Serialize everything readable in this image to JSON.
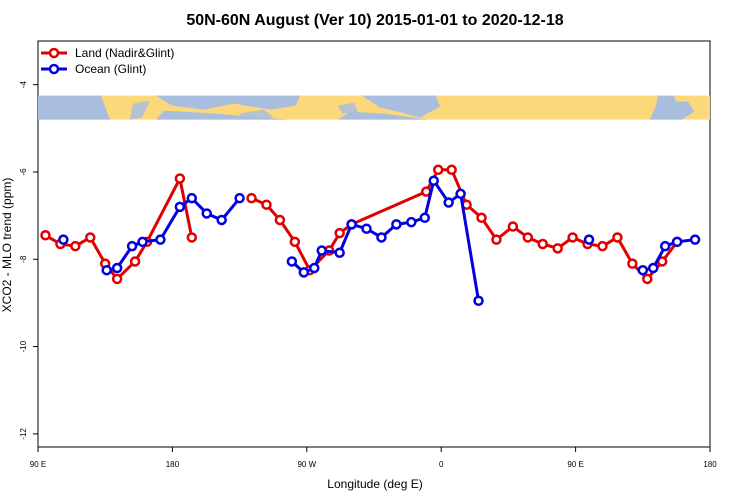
{
  "chart_data": {
    "type": "line",
    "title": "50N-60N August (Ver 10)   2015-01-01 to 2020-12-18",
    "xlabel": "Longitude (deg E)",
    "ylabel": "XCO2 - MLO trend (ppm)",
    "x_ticks": [
      {
        "value": -90,
        "label": "90 E"
      },
      {
        "value": 0,
        "label": "180"
      },
      {
        "value": 90,
        "label": "90 W"
      },
      {
        "value": 180,
        "label": "0"
      },
      {
        "value": 270,
        "label": "90 E"
      },
      {
        "value": 360,
        "label": "180"
      }
    ],
    "y_ticks": [
      {
        "value": -4,
        "label": "-4"
      },
      {
        "value": -6,
        "label": "-6"
      },
      {
        "value": -8,
        "label": "-8"
      },
      {
        "value": -10,
        "label": "-10"
      },
      {
        "value": -12,
        "label": "-12"
      }
    ],
    "xlim": [
      -90,
      360
    ],
    "ylim": [
      -12.3,
      -3.0
    ],
    "map_band": {
      "y_top": -4.25,
      "y_bottom": -4.8,
      "ocean_color": "#a9bedf",
      "land_color": "#fcd87a"
    },
    "series": [
      {
        "name": "Land (Nadir&Glint)",
        "color": "#e00000",
        "segments": [
          [
            [
              -85,
              -7.45
            ],
            [
              -75,
              -7.65
            ],
            [
              -65,
              -7.7
            ],
            [
              -55,
              -7.5
            ],
            [
              -45,
              -8.1
            ],
            [
              -37,
              -8.45
            ],
            [
              -25,
              -8.05
            ],
            [
              -17,
              -7.6
            ],
            [
              5,
              -6.15
            ],
            [
              13,
              -7.5
            ]
          ],
          [
            [
              53,
              -6.6
            ],
            [
              63,
              -6.75
            ],
            [
              72,
              -7.1
            ],
            [
              82,
              -7.6
            ],
            [
              92,
              -8.25
            ],
            [
              105,
              -7.8
            ],
            [
              112,
              -7.4
            ],
            [
              120,
              -7.2
            ],
            [
              170,
              -6.45
            ],
            [
              178,
              -5.95
            ],
            [
              187,
              -5.95
            ],
            [
              197,
              -6.75
            ],
            [
              207,
              -7.05
            ],
            [
              217,
              -7.55
            ],
            [
              228,
              -7.25
            ],
            [
              238,
              -7.5
            ],
            [
              248,
              -7.65
            ],
            [
              258,
              -7.75
            ],
            [
              268,
              -7.5
            ],
            [
              278,
              -7.65
            ],
            [
              288,
              -7.7
            ],
            [
              298,
              -7.5
            ],
            [
              308,
              -8.1
            ],
            [
              318,
              -8.45
            ],
            [
              328,
              -8.05
            ],
            [
              338,
              -7.6
            ]
          ]
        ]
      },
      {
        "name": "Ocean (Glint)",
        "color": "#0000e0",
        "segments": [
          [
            [
              -73,
              -7.55
            ]
          ],
          [
            [
              -44,
              -8.25
            ],
            [
              -37,
              -8.2
            ],
            [
              -27,
              -7.7
            ],
            [
              -20,
              -7.6
            ],
            [
              -8,
              -7.55
            ],
            [
              5,
              -6.8
            ],
            [
              13,
              -6.6
            ],
            [
              23,
              -6.95
            ],
            [
              33,
              -7.1
            ],
            [
              45,
              -6.6
            ]
          ],
          [
            [
              80,
              -8.05
            ],
            [
              88,
              -8.3
            ],
            [
              95,
              -8.2
            ],
            [
              100,
              -7.8
            ],
            [
              112,
              -7.85
            ],
            [
              120,
              -7.2
            ],
            [
              130,
              -7.3
            ],
            [
              140,
              -7.5
            ],
            [
              150,
              -7.2
            ],
            [
              160,
              -7.15
            ],
            [
              169,
              -7.05
            ],
            [
              175,
              -6.2
            ],
            [
              185,
              -6.7
            ],
            [
              193,
              -6.5
            ],
            [
              205,
              -8.95
            ]
          ],
          [
            [
              279,
              -7.55
            ]
          ],
          [
            [
              315,
              -8.25
            ],
            [
              322,
              -8.2
            ],
            [
              330,
              -7.7
            ],
            [
              338,
              -7.6
            ],
            [
              350,
              -7.55
            ]
          ]
        ]
      }
    ]
  }
}
